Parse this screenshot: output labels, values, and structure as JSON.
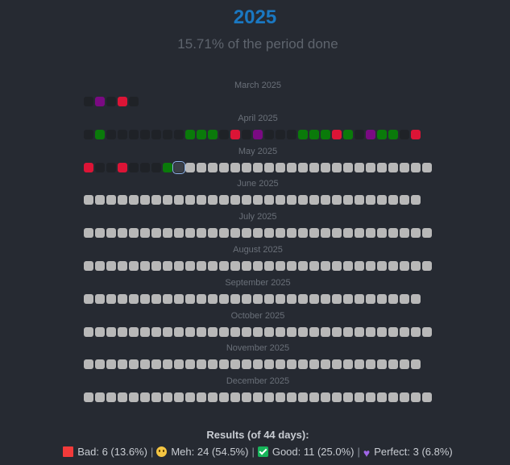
{
  "header": {
    "year": "2025",
    "progress_text": "15.71% of the period done"
  },
  "colors": {
    "year": "#1a78c2",
    "background": "#262a32",
    "bad": "#dc1436",
    "good": "#0a7a0a",
    "perfect": "#7a0a82",
    "meh": "#1f2227",
    "future": "#b8b8b8",
    "today_outline": "#8fb4ea"
  },
  "months": [
    {
      "label": "March 2025",
      "days": [
        "meh",
        "perfect",
        "meh",
        "bad",
        "meh"
      ]
    },
    {
      "label": "April 2025",
      "days": [
        "meh",
        "good",
        "meh",
        "meh",
        "meh",
        "meh",
        "meh",
        "meh",
        "meh",
        "good",
        "good",
        "good",
        "meh",
        "bad",
        "meh",
        "perfect",
        "meh",
        "meh",
        "meh",
        "good",
        "good",
        "good",
        "bad",
        "good",
        "meh",
        "perfect",
        "good",
        "good",
        "meh",
        "bad"
      ]
    },
    {
      "label": "May 2025",
      "days": [
        "bad",
        "meh",
        "meh",
        "bad",
        "meh",
        "meh",
        "meh",
        "good",
        "today",
        "future",
        "future",
        "future",
        "future",
        "future",
        "future",
        "future",
        "future",
        "future",
        "future",
        "future",
        "future",
        "future",
        "future",
        "future",
        "future",
        "future",
        "future",
        "future",
        "future",
        "future",
        "future"
      ]
    },
    {
      "label": "June 2025",
      "days": [
        "future",
        "future",
        "future",
        "future",
        "future",
        "future",
        "future",
        "future",
        "future",
        "future",
        "future",
        "future",
        "future",
        "future",
        "future",
        "future",
        "future",
        "future",
        "future",
        "future",
        "future",
        "future",
        "future",
        "future",
        "future",
        "future",
        "future",
        "future",
        "future",
        "future"
      ]
    },
    {
      "label": "July 2025",
      "days": [
        "future",
        "future",
        "future",
        "future",
        "future",
        "future",
        "future",
        "future",
        "future",
        "future",
        "future",
        "future",
        "future",
        "future",
        "future",
        "future",
        "future",
        "future",
        "future",
        "future",
        "future",
        "future",
        "future",
        "future",
        "future",
        "future",
        "future",
        "future",
        "future",
        "future",
        "future"
      ]
    },
    {
      "label": "August 2025",
      "days": [
        "future",
        "future",
        "future",
        "future",
        "future",
        "future",
        "future",
        "future",
        "future",
        "future",
        "future",
        "future",
        "future",
        "future",
        "future",
        "future",
        "future",
        "future",
        "future",
        "future",
        "future",
        "future",
        "future",
        "future",
        "future",
        "future",
        "future",
        "future",
        "future",
        "future",
        "future"
      ]
    },
    {
      "label": "September 2025",
      "days": [
        "future",
        "future",
        "future",
        "future",
        "future",
        "future",
        "future",
        "future",
        "future",
        "future",
        "future",
        "future",
        "future",
        "future",
        "future",
        "future",
        "future",
        "future",
        "future",
        "future",
        "future",
        "future",
        "future",
        "future",
        "future",
        "future",
        "future",
        "future",
        "future",
        "future"
      ]
    },
    {
      "label": "October 2025",
      "days": [
        "future",
        "future",
        "future",
        "future",
        "future",
        "future",
        "future",
        "future",
        "future",
        "future",
        "future",
        "future",
        "future",
        "future",
        "future",
        "future",
        "future",
        "future",
        "future",
        "future",
        "future",
        "future",
        "future",
        "future",
        "future",
        "future",
        "future",
        "future",
        "future",
        "future",
        "future"
      ]
    },
    {
      "label": "November 2025",
      "days": [
        "future",
        "future",
        "future",
        "future",
        "future",
        "future",
        "future",
        "future",
        "future",
        "future",
        "future",
        "future",
        "future",
        "future",
        "future",
        "future",
        "future",
        "future",
        "future",
        "future",
        "future",
        "future",
        "future",
        "future",
        "future",
        "future",
        "future",
        "future",
        "future",
        "future"
      ]
    },
    {
      "label": "December 2025",
      "days": [
        "future",
        "future",
        "future",
        "future",
        "future",
        "future",
        "future",
        "future",
        "future",
        "future",
        "future",
        "future",
        "future",
        "future",
        "future",
        "future",
        "future",
        "future",
        "future",
        "future",
        "future",
        "future",
        "future",
        "future",
        "future",
        "future",
        "future",
        "future",
        "future",
        "future",
        "future"
      ]
    }
  ],
  "results": {
    "title": "Results (of 44 days):",
    "bad": {
      "label": "Bad: 6 (13.6%)",
      "icon": "red-square-icon"
    },
    "meh": {
      "label": "Meh: 24 (54.5%)",
      "icon": "meh-face-icon"
    },
    "good": {
      "label": "Good: 11 (25.0%)",
      "icon": "green-check-icon"
    },
    "perfect": {
      "label": "Perfect: 3 (6.8%)",
      "icon": "purple-heart-icon"
    },
    "separator": "|"
  }
}
